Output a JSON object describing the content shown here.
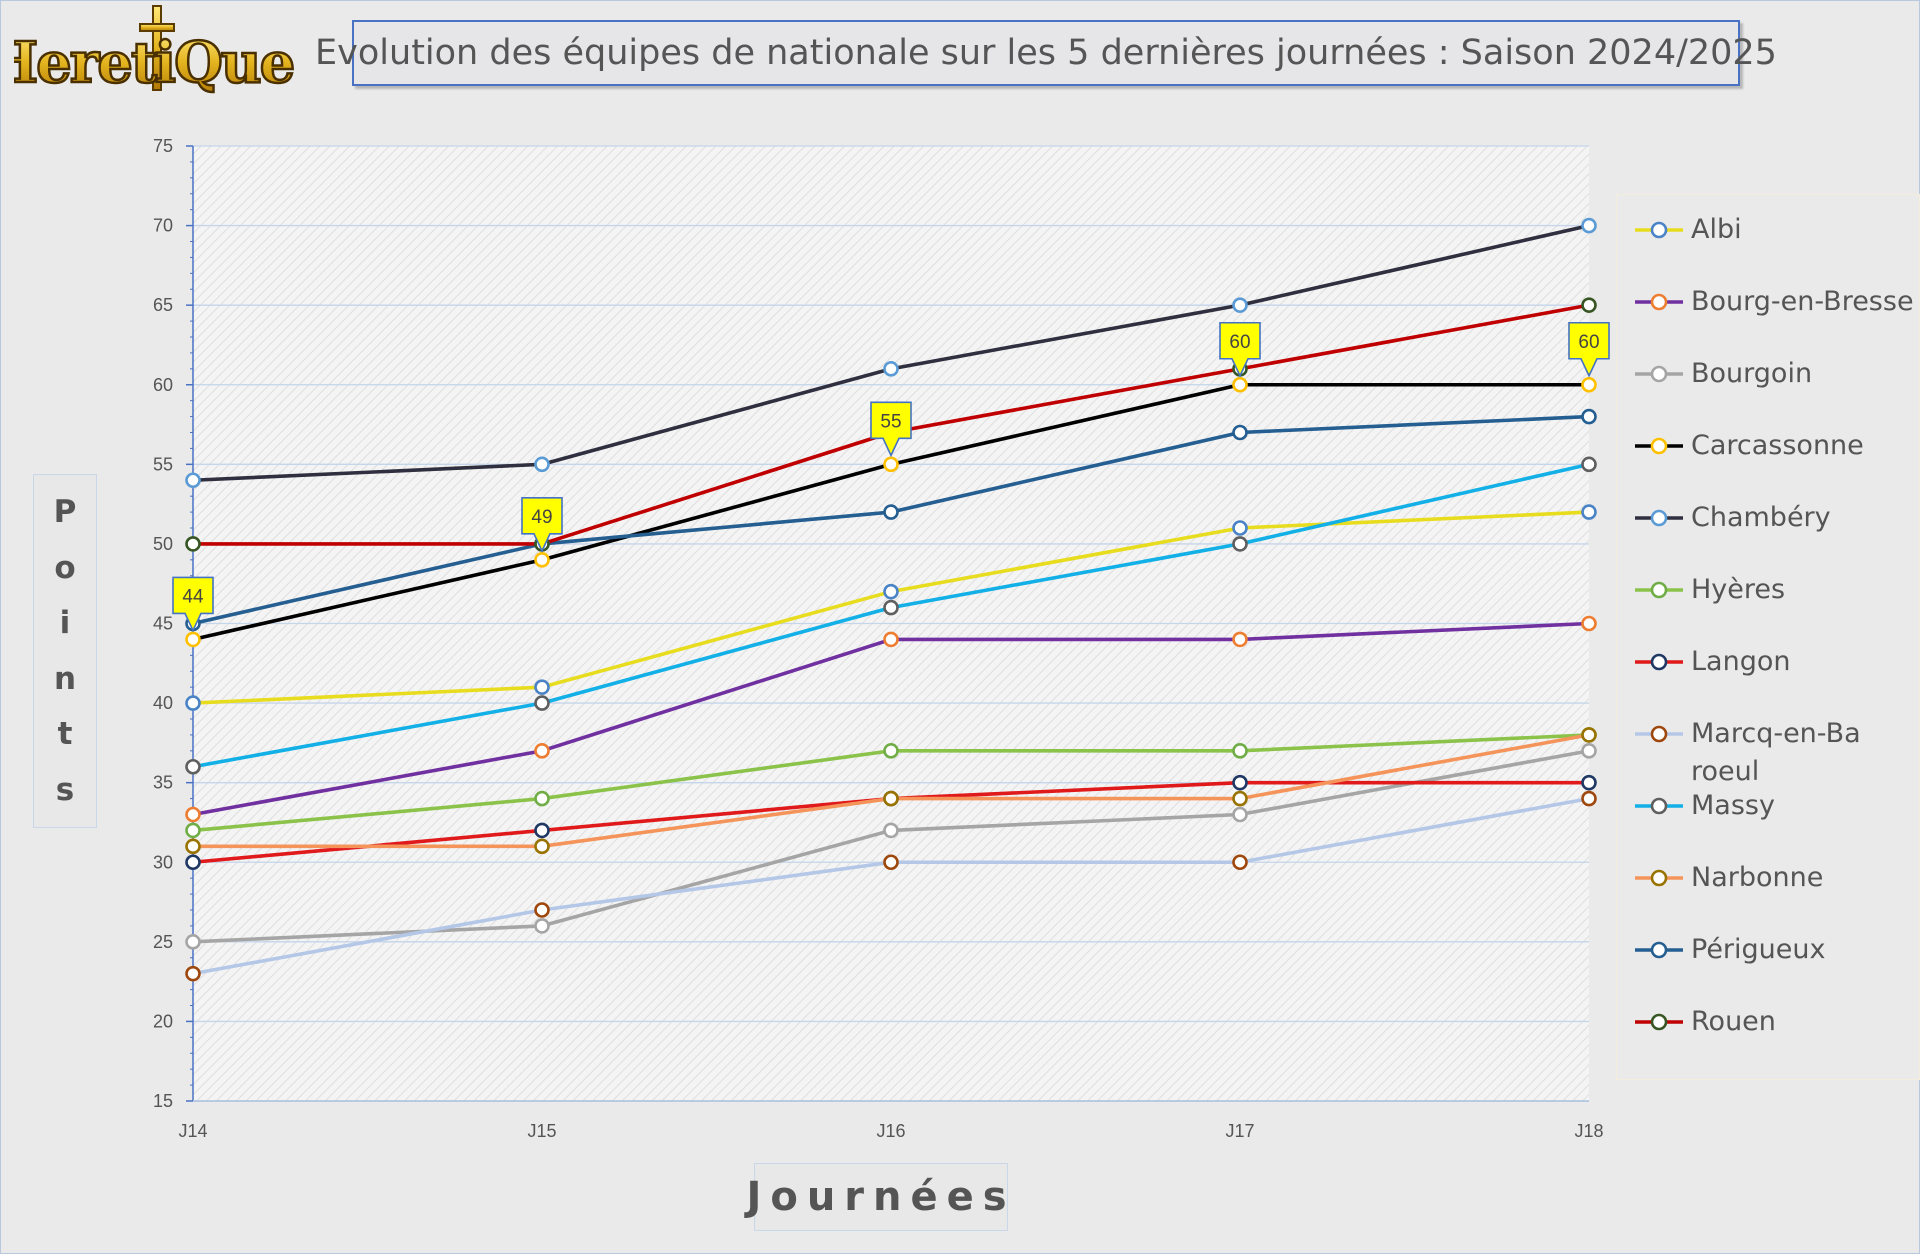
{
  "logo": {
    "text": "HeretiQues"
  },
  "title": "Evolution des équipes de nationale sur les 5 dernières journées : Saison 2024/2025",
  "ylabel_letters": [
    "P",
    "o",
    "i",
    "n",
    "t",
    "s"
  ],
  "xlabel": "Journées",
  "chart_data": {
    "type": "line",
    "title": "Evolution des équipes de nationale sur les 5 dernières journées : Saison 2024/2025",
    "xlabel": "Journées",
    "ylabel": "Points",
    "categories": [
      "J14",
      "J15",
      "J16",
      "J17",
      "J18"
    ],
    "ylim": [
      15,
      75
    ],
    "ytick_step": 5,
    "yticks": [
      "15",
      "20",
      "25",
      "30",
      "35",
      "40",
      "45",
      "50",
      "55",
      "60",
      "65",
      "70",
      "75"
    ],
    "grid": true,
    "legend_position": "right",
    "series": [
      {
        "name": "Albi",
        "line_color": "#e8dc1e",
        "marker_color": "#4a84c6",
        "values": [
          40,
          41,
          47,
          51,
          52
        ]
      },
      {
        "name": "Bourg-en-Bresse",
        "line_color": "#7030a0",
        "marker_color": "#ed7d31",
        "values": [
          33,
          37,
          44,
          44,
          45
        ]
      },
      {
        "name": "Bourgoin",
        "line_color": "#a5a5a5",
        "marker_color": "#a5a5a5",
        "values": [
          25,
          26,
          32,
          33,
          37
        ]
      },
      {
        "name": "Carcassonne",
        "line_color": "#000000",
        "marker_color": "#ffc000",
        "values": [
          44,
          49,
          55,
          60,
          60
        ]
      },
      {
        "name": "Chambéry",
        "line_color": "#2f2f3f",
        "marker_color": "#5b9bd5",
        "values": [
          54,
          55,
          61,
          65,
          70
        ]
      },
      {
        "name": "Hyères",
        "line_color": "#8bc34a",
        "marker_color": "#70ad47",
        "values": [
          32,
          34,
          37,
          37,
          38
        ]
      },
      {
        "name": "Langon",
        "line_color": "#e0191b",
        "marker_color": "#203864",
        "values": [
          30,
          32,
          34,
          35,
          35
        ]
      },
      {
        "name": "Marcq-en-Baroeul",
        "line_color": "#b4c7e7",
        "marker_color": "#9e480e",
        "values": [
          23,
          27,
          30,
          30,
          34
        ]
      },
      {
        "name": "Massy",
        "line_color": "#12b0e6",
        "marker_color": "#5f5f5f",
        "values": [
          36,
          40,
          46,
          50,
          55
        ]
      },
      {
        "name": "Narbonne",
        "line_color": "#f4945a",
        "marker_color": "#997300",
        "values": [
          31,
          31,
          34,
          34,
          38
        ]
      },
      {
        "name": "Périgueux",
        "line_color": "#255e91",
        "marker_color": "#255e91",
        "values": [
          45,
          50,
          52,
          57,
          58
        ]
      },
      {
        "name": "Rouen",
        "line_color": "#c00000",
        "marker_color": "#375623",
        "values": [
          50,
          50,
          57,
          61,
          65
        ]
      }
    ],
    "data_labels": [
      {
        "series": "Carcassonne",
        "category": "J14",
        "text": "44"
      },
      {
        "series": "Carcassonne",
        "category": "J15",
        "text": "49"
      },
      {
        "series": "Carcassonne",
        "category": "J16",
        "text": "55"
      },
      {
        "series": "Carcassonne",
        "category": "J17",
        "text": "60"
      },
      {
        "series": "Carcassonne",
        "category": "J18",
        "text": "60"
      }
    ],
    "label_style": {
      "fill": "#ffff00",
      "border": "#4472c4",
      "text": "#444444"
    }
  }
}
